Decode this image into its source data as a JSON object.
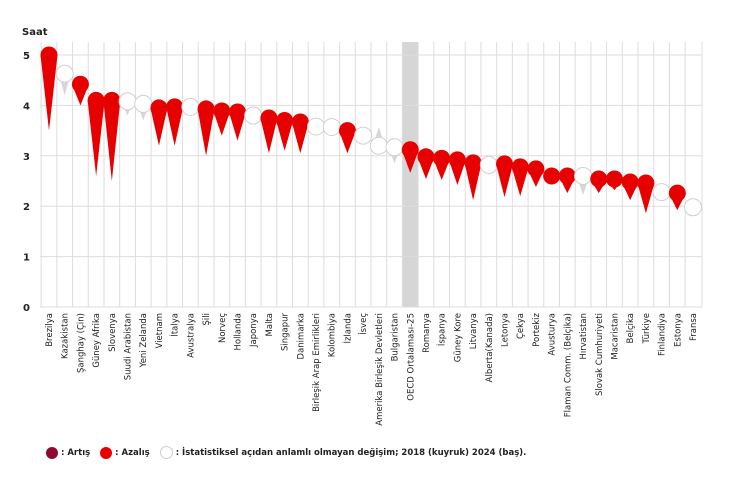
{
  "chart_data": {
    "type": "scatter",
    "ylabel": "Saat",
    "ylim": [
      0,
      5
    ],
    "yticks": [
      "0",
      "1",
      "2",
      "3",
      "4",
      "5"
    ],
    "grid": true,
    "highlight": "OECD Ortalaması-25",
    "colors": {
      "increase": "#8c0a2f",
      "decrease": "#e60000",
      "ns": "#ffffff",
      "ns_tail": "#d6d6d6",
      "grid": "#dddddd",
      "highlight": "#d6d6d6"
    },
    "points": [
      {
        "label": "Brezilya",
        "v2024": 5.0,
        "v2018": 3.5,
        "change": "decrease"
      },
      {
        "label": "Kazakistan",
        "v2024": 4.63,
        "v2018": 4.2,
        "change": "ns"
      },
      {
        "label": "Şanghay (Çin)",
        "v2024": 4.42,
        "v2018": 4.0,
        "change": "decrease"
      },
      {
        "label": "Güney Afrika",
        "v2024": 4.1,
        "v2018": 2.6,
        "change": "decrease"
      },
      {
        "label": "Slovenya",
        "v2024": 4.1,
        "v2018": 2.5,
        "change": "decrease"
      },
      {
        "label": "Suudi Arabistan",
        "v2024": 4.08,
        "v2018": 3.8,
        "change": "ns"
      },
      {
        "label": "Yeni Zelanda",
        "v2024": 4.03,
        "v2018": 3.7,
        "change": "ns"
      },
      {
        "label": "Vietnam",
        "v2024": 3.95,
        "v2018": 3.2,
        "change": "decrease"
      },
      {
        "label": "İtalya",
        "v2024": 3.97,
        "v2018": 3.2,
        "change": "decrease"
      },
      {
        "label": "Avustralya",
        "v2024": 3.97,
        "v2018": 3.97,
        "change": "ns"
      },
      {
        "label": "Şili",
        "v2024": 3.93,
        "v2018": 3.0,
        "change": "decrease"
      },
      {
        "label": "Norveç",
        "v2024": 3.89,
        "v2018": 3.4,
        "change": "decrease"
      },
      {
        "label": "Hollanda",
        "v2024": 3.87,
        "v2018": 3.3,
        "change": "decrease"
      },
      {
        "label": "Japonya",
        "v2024": 3.8,
        "v2018": 3.8,
        "change": "ns"
      },
      {
        "label": "Malta",
        "v2024": 3.75,
        "v2018": 3.05,
        "change": "decrease"
      },
      {
        "label": "Singapur",
        "v2024": 3.7,
        "v2018": 3.1,
        "change": "decrease"
      },
      {
        "label": "Danimarka",
        "v2024": 3.67,
        "v2018": 3.05,
        "change": "decrease"
      },
      {
        "label": "Birleşik Arap Emirlikleri",
        "v2024": 3.58,
        "v2018": 3.58,
        "change": "ns"
      },
      {
        "label": "Kolombiya",
        "v2024": 3.57,
        "v2018": 3.57,
        "change": "ns"
      },
      {
        "label": "İzlanda",
        "v2024": 3.5,
        "v2018": 3.05,
        "change": "decrease"
      },
      {
        "label": "İsveç",
        "v2024": 3.4,
        "v2018": 3.4,
        "change": "ns"
      },
      {
        "label": "Amerika Birleşik Devletleri",
        "v2024": 3.2,
        "v2018": 3.57,
        "change": "ns"
      },
      {
        "label": "Bulgaristan",
        "v2024": 3.17,
        "v2018": 2.85,
        "change": "ns"
      },
      {
        "label": "OECD Ortalaması-25",
        "v2024": 3.12,
        "v2018": 2.66,
        "change": "decrease"
      },
      {
        "label": "Romanya",
        "v2024": 2.98,
        "v2018": 2.54,
        "change": "decrease"
      },
      {
        "label": "İspanya",
        "v2024": 2.95,
        "v2018": 2.52,
        "change": "decrease"
      },
      {
        "label": "Güney Kore",
        "v2024": 2.92,
        "v2018": 2.42,
        "change": "decrease"
      },
      {
        "label": "Litvanya",
        "v2024": 2.86,
        "v2018": 2.12,
        "change": "decrease"
      },
      {
        "label": "Alberta(Kanada)",
        "v2024": 2.82,
        "v2018": 2.62,
        "change": "ns"
      },
      {
        "label": "Letonya",
        "v2024": 2.84,
        "v2018": 2.18,
        "change": "decrease"
      },
      {
        "label": "Çekya",
        "v2024": 2.78,
        "v2018": 2.2,
        "change": "decrease"
      },
      {
        "label": "Portekiz",
        "v2024": 2.74,
        "v2018": 2.38,
        "change": "decrease"
      },
      {
        "label": "Avusturya",
        "v2024": 2.6,
        "v2018": 2.6,
        "change": "decrease"
      },
      {
        "label": "Flaman Comm. (Belçika)",
        "v2024": 2.6,
        "v2018": 2.26,
        "change": "decrease"
      },
      {
        "label": "Hırvatistan",
        "v2024": 2.6,
        "v2018": 2.22,
        "change": "ns"
      },
      {
        "label": "Slovak Cumhuriyeti",
        "v2024": 2.54,
        "v2018": 2.26,
        "change": "decrease"
      },
      {
        "label": "Macaristan",
        "v2024": 2.54,
        "v2018": 2.32,
        "change": "decrease"
      },
      {
        "label": "Belçika",
        "v2024": 2.48,
        "v2018": 2.12,
        "change": "decrease"
      },
      {
        "label": "Türkiye",
        "v2024": 2.46,
        "v2018": 1.86,
        "change": "decrease"
      },
      {
        "label": "Finlandiya",
        "v2024": 2.28,
        "v2018": 2.28,
        "change": "ns"
      },
      {
        "label": "Estonya",
        "v2024": 2.26,
        "v2018": 1.92,
        "change": "decrease"
      },
      {
        "label": "Fransa",
        "v2024": 1.98,
        "v2018": 1.98,
        "change": "ns"
      }
    ],
    "legend": {
      "increase": ": Artış",
      "decrease": ": Azalış",
      "ns": ": İstatistiksel açıdan anlamlı olmayan değişim; 2018 (kuyruk) 2024 (baş)."
    }
  }
}
